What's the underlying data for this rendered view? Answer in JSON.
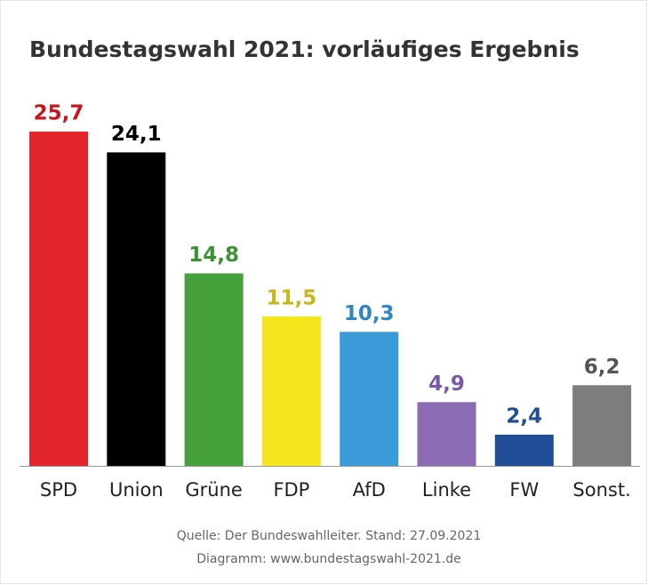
{
  "chart_data": {
    "type": "bar",
    "title": "Bundestagswahl 2021: vorläufiges Ergebnis",
    "categories": [
      "SPD",
      "Union",
      "Grüne",
      "FDP",
      "AfD",
      "Linke",
      "FW",
      "Sonst."
    ],
    "values": [
      25.7,
      24.1,
      14.8,
      11.5,
      10.3,
      4.9,
      2.4,
      6.2
    ],
    "value_labels": [
      "25,7",
      "24,1",
      "14,8",
      "11,5",
      "10,3",
      "4,9",
      "2,4",
      "6,2"
    ],
    "colors": [
      "#e3262b",
      "#000000",
      "#46a13d",
      "#f5e61e",
      "#3b9ad8",
      "#8c6bb5",
      "#1f4e96",
      "#7d7d7d"
    ],
    "label_colors": [
      "#c8161c",
      "#000000",
      "#3a9233",
      "#c9b61a",
      "#2f86c4",
      "#7a58a8",
      "#1f4e96",
      "#555555"
    ],
    "source": [
      "Quelle: Der Bundeswahlleiter. Stand: 27.09.2021",
      "Diagramm: www.bundestagswahl-2021.de"
    ]
  }
}
